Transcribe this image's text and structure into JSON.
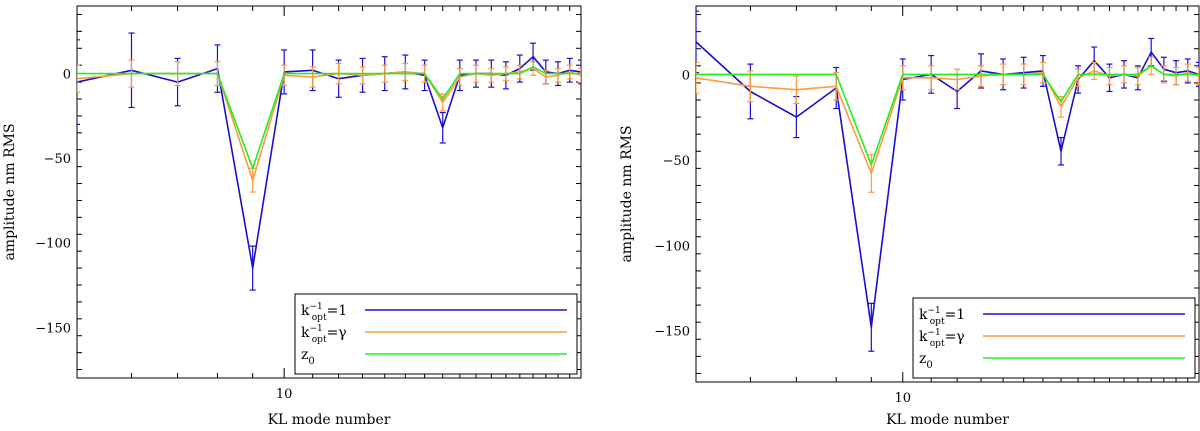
{
  "chart_data": [
    {
      "type": "line",
      "title": "",
      "xlabel": "KL mode number",
      "ylabel": "amplitude nm RMS",
      "xscale": "log",
      "xlim": [
        5,
        27
      ],
      "ylim": [
        -180,
        40
      ],
      "yticks": [
        0,
        -50,
        -100,
        -150
      ],
      "ytick_labels": [
        "0",
        "−50",
        "−100",
        "−150"
      ],
      "xticks": [
        10
      ],
      "xtick_labels": [
        "10"
      ],
      "legend_position": "bottom-right",
      "series": [
        {
          "name": "k_opt^-1=1",
          "color": "#1a10cc",
          "x": [
            5,
            6,
            7,
            8,
            9,
            10,
            11,
            12,
            13,
            14,
            15,
            16,
            17,
            18,
            19,
            20,
            21,
            22,
            23,
            24,
            25,
            26,
            27
          ],
          "y": [
            -5,
            2,
            -5,
            3,
            -115,
            1,
            2,
            -3,
            -1,
            0,
            1,
            -1,
            -32,
            -1,
            0,
            0,
            -1,
            3,
            10,
            1,
            0,
            2,
            1
          ],
          "err": [
            25,
            22,
            14,
            14,
            13,
            13,
            12,
            11,
            10,
            10,
            10,
            9,
            9,
            9,
            8,
            8,
            8,
            8,
            8,
            7,
            7,
            7,
            7
          ]
        },
        {
          "name": "k_opt^-1=γ",
          "color": "#ff9a40",
          "x": [
            5,
            6,
            7,
            8,
            9,
            10,
            11,
            12,
            13,
            14,
            15,
            16,
            17,
            18,
            19,
            20,
            21,
            22,
            23,
            24,
            25,
            26,
            27
          ],
          "y": [
            -3,
            0,
            0,
            0,
            -63,
            -1,
            -2,
            0,
            -1,
            0,
            1,
            0,
            -17,
            -2,
            0,
            -1,
            0,
            1,
            3,
            -2,
            -1,
            1,
            -1
          ],
          "err": [
            8,
            8,
            7,
            7,
            7,
            6,
            6,
            6,
            5,
            5,
            5,
            5,
            5,
            5,
            5,
            4,
            4,
            4,
            4,
            4,
            4,
            4,
            4
          ]
        },
        {
          "name": "z₀",
          "color": "#22ee22",
          "x": [
            5,
            6,
            7,
            8,
            9,
            10,
            11,
            12,
            13,
            14,
            15,
            16,
            17,
            18,
            19,
            20,
            21,
            22,
            23,
            24,
            25,
            26,
            27
          ],
          "y": [
            0,
            0,
            0,
            0,
            -56,
            0,
            0,
            0,
            0,
            0,
            0,
            0,
            -15,
            0,
            0,
            0,
            0,
            0,
            4,
            0,
            0,
            0,
            0
          ],
          "err": []
        }
      ],
      "legend": [
        "k⁻¹opt=1",
        "k⁻¹opt=γ",
        "z₀"
      ]
    },
    {
      "type": "line",
      "title": "",
      "xlabel": "KL mode number",
      "ylabel": "amplitude nm RMS",
      "xscale": "log",
      "xlim": [
        5,
        27
      ],
      "ylim": [
        -180,
        40
      ],
      "yticks": [
        0,
        -50,
        -100,
        -150
      ],
      "ytick_labels": [
        "0",
        "−50",
        "−100",
        "−150"
      ],
      "xticks": [
        10
      ],
      "xtick_labels": [
        "10"
      ],
      "legend_position": "bottom-right",
      "series": [
        {
          "name": "k_opt^-1=1",
          "color": "#1a10cc",
          "x": [
            5,
            6,
            7,
            8,
            9,
            10,
            11,
            12,
            13,
            14,
            15,
            16,
            17,
            18,
            19,
            20,
            21,
            22,
            23,
            24,
            25,
            26,
            27
          ],
          "y": [
            19,
            -10,
            -25,
            -8,
            -148,
            -3,
            0,
            -10,
            2,
            0,
            1,
            2,
            -45,
            -3,
            8,
            -2,
            0,
            -2,
            13,
            3,
            1,
            2,
            0
          ],
          "err": [
            18,
            16,
            12,
            12,
            14,
            12,
            11,
            10,
            10,
            9,
            9,
            9,
            8,
            8,
            8,
            8,
            8,
            7,
            8,
            7,
            7,
            7,
            7
          ]
        },
        {
          "name": "k_opt^-1=γ",
          "color": "#ff9a40",
          "x": [
            5,
            6,
            7,
            8,
            9,
            10,
            11,
            12,
            13,
            14,
            15,
            16,
            17,
            18,
            19,
            20,
            21,
            22,
            23,
            24,
            25,
            26,
            27
          ],
          "y": [
            -2,
            -7,
            -9,
            -7,
            -58,
            -2,
            -2,
            -3,
            -1,
            0,
            0,
            1,
            -19,
            -2,
            2,
            -1,
            0,
            -1,
            5,
            0,
            -1,
            1,
            -1
          ],
          "err": [
            9,
            9,
            8,
            8,
            11,
            7,
            7,
            6,
            6,
            6,
            6,
            6,
            6,
            5,
            5,
            5,
            5,
            5,
            5,
            5,
            5,
            5,
            5
          ]
        },
        {
          "name": "z₀",
          "color": "#22ee22",
          "x": [
            5,
            6,
            7,
            8,
            9,
            10,
            11,
            12,
            13,
            14,
            15,
            16,
            17,
            18,
            19,
            20,
            21,
            22,
            23,
            24,
            25,
            26,
            27
          ],
          "y": [
            0,
            0,
            0,
            0,
            -53,
            0,
            0,
            0,
            0,
            0,
            0,
            0,
            -16,
            0,
            0,
            0,
            0,
            0,
            5,
            0,
            0,
            0,
            0
          ],
          "err": []
        }
      ],
      "legend": [
        "k⁻¹opt=1",
        "k⁻¹opt=γ",
        "z₀"
      ]
    }
  ]
}
